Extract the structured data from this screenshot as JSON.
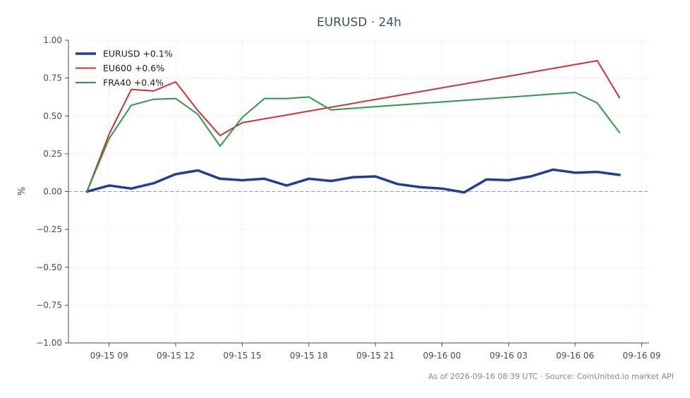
{
  "chart_data": {
    "type": "line",
    "title": "EURUSD · 24h",
    "xlabel": "",
    "ylabel": "%",
    "ylim": [
      -1.0,
      1.0
    ],
    "xlim": [
      "2026-09-15 07:10",
      "2026-09-16 09:20"
    ],
    "yticks": [
      "1.00",
      "0.75",
      "0.50",
      "0.25",
      "0.00",
      "−0.25",
      "−0.50",
      "−0.75",
      "−1.00"
    ],
    "xticks": [
      {
        "t": "2026-09-15 09:00",
        "label": "09-15 09"
      },
      {
        "t": "2026-09-15 12:00",
        "label": "09-15 12"
      },
      {
        "t": "2026-09-15 15:00",
        "label": "09-15 15"
      },
      {
        "t": "2026-09-15 18:00",
        "label": "09-15 18"
      },
      {
        "t": "2026-09-15 21:00",
        "label": "09-15 21"
      },
      {
        "t": "2026-09-16 00:00",
        "label": "09-16 00"
      },
      {
        "t": "2026-09-16 03:00",
        "label": "09-16 03"
      },
      {
        "t": "2026-09-16 06:00",
        "label": "09-16 06"
      },
      {
        "t": "2026-09-16 09:00",
        "label": "09-16 09"
      }
    ],
    "grid": true,
    "legend_position": "top-left",
    "zero_line": {
      "y": 0,
      "color": "#8a9db0",
      "style": "dashed"
    },
    "series": [
      {
        "name": "EURUSD +0.1%",
        "color": "#1f3d99",
        "points": [
          [
            "2026-09-15 08:00",
            0.0
          ],
          [
            "2026-09-15 09:00",
            0.04
          ],
          [
            "2026-09-15 10:00",
            0.02
          ],
          [
            "2026-09-15 11:00",
            0.055
          ],
          [
            "2026-09-15 12:00",
            0.115
          ],
          [
            "2026-09-15 13:00",
            0.14
          ],
          [
            "2026-09-15 14:00",
            0.085
          ],
          [
            "2026-09-15 15:00",
            0.075
          ],
          [
            "2026-09-15 16:00",
            0.085
          ],
          [
            "2026-09-15 17:00",
            0.04
          ],
          [
            "2026-09-15 18:00",
            0.085
          ],
          [
            "2026-09-15 19:00",
            0.07
          ],
          [
            "2026-09-15 20:00",
            0.095
          ],
          [
            "2026-09-15 21:00",
            0.1
          ],
          [
            "2026-09-15 22:00",
            0.05
          ],
          [
            "2026-09-15 23:00",
            0.03
          ],
          [
            "2026-09-16 00:00",
            0.02
          ],
          [
            "2026-09-16 01:00",
            -0.005
          ],
          [
            "2026-09-16 02:00",
            0.08
          ],
          [
            "2026-09-16 03:00",
            0.075
          ],
          [
            "2026-09-16 04:00",
            0.1
          ],
          [
            "2026-09-16 05:00",
            0.145
          ],
          [
            "2026-09-16 06:00",
            0.125
          ],
          [
            "2026-09-16 07:00",
            0.13
          ],
          [
            "2026-09-16 08:00",
            0.11
          ]
        ]
      },
      {
        "name": "EU600 +0.6%",
        "color": "#c8342f",
        "points": [
          [
            "2026-09-15 08:00",
            0.0
          ],
          [
            "2026-09-15 09:00",
            0.38
          ],
          [
            "2026-09-15 10:00",
            0.675
          ],
          [
            "2026-09-15 11:00",
            0.665
          ],
          [
            "2026-09-15 12:00",
            0.725
          ],
          [
            "2026-09-15 13:00",
            0.535
          ],
          [
            "2026-09-15 14:00",
            0.37
          ],
          [
            "2026-09-15 15:00",
            0.455
          ],
          [
            "2026-09-16 07:00",
            0.865
          ],
          [
            "2026-09-16 08:00",
            0.62
          ]
        ]
      },
      {
        "name": "FRA40 +0.4%",
        "color": "#2a9a4a",
        "points": [
          [
            "2026-09-15 08:00",
            0.0
          ],
          [
            "2026-09-15 09:00",
            0.35
          ],
          [
            "2026-09-15 10:00",
            0.57
          ],
          [
            "2026-09-15 11:00",
            0.61
          ],
          [
            "2026-09-15 12:00",
            0.615
          ],
          [
            "2026-09-15 13:00",
            0.51
          ],
          [
            "2026-09-15 14:00",
            0.3
          ],
          [
            "2026-09-15 15:00",
            0.49
          ],
          [
            "2026-09-15 16:00",
            0.615
          ],
          [
            "2026-09-15 17:00",
            0.615
          ],
          [
            "2026-09-15 18:00",
            0.625
          ],
          [
            "2026-09-15 19:00",
            0.54
          ],
          [
            "2026-09-16 06:00",
            0.655
          ],
          [
            "2026-09-16 07:00",
            0.585
          ],
          [
            "2026-09-16 08:00",
            0.39
          ]
        ]
      }
    ]
  },
  "footer": {
    "text": "As of 2026-09-16 08:39 UTC · Source: CoinUnited.io market API"
  }
}
